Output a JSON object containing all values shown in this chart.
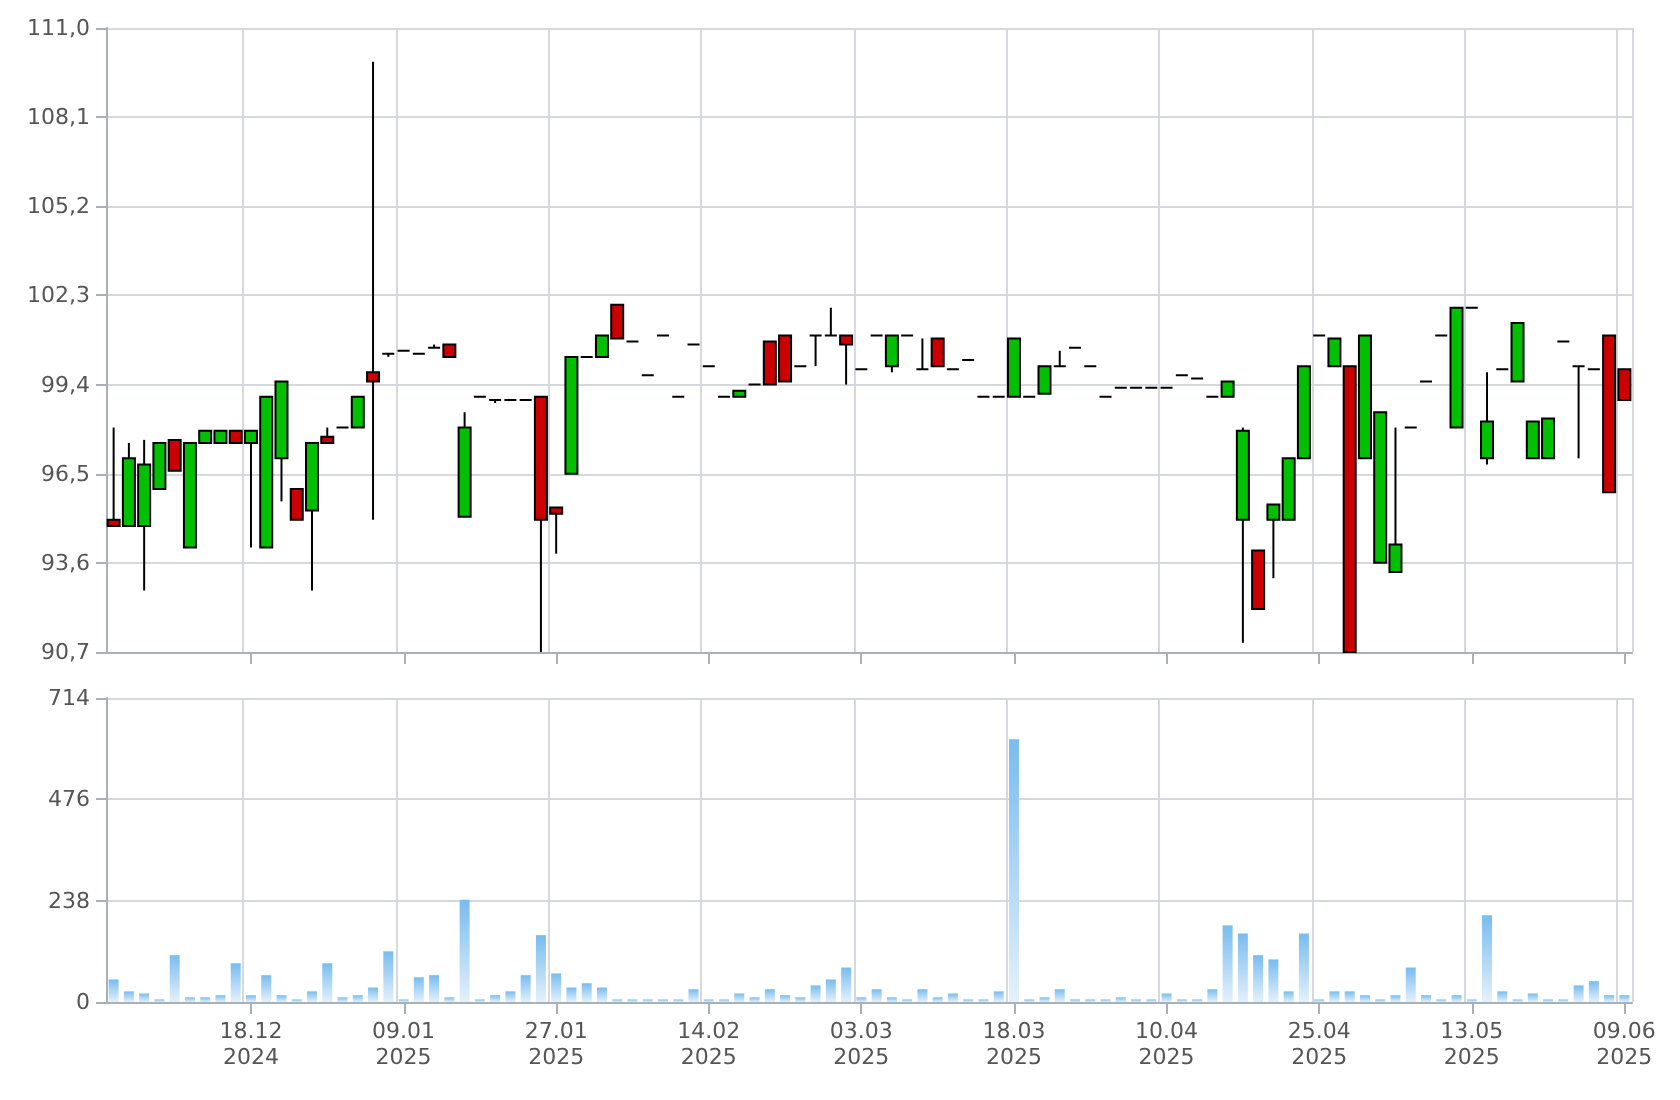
{
  "chart_data": [
    {
      "type": "candlestick",
      "grid": true,
      "tick_labels": "y",
      "categories": [
        null,
        null,
        null,
        null,
        null,
        null,
        null,
        null,
        null,
        null,
        null,
        null,
        null,
        null,
        null,
        null,
        null,
        null,
        null,
        null,
        null,
        null,
        null,
        null,
        null,
        null,
        null,
        null,
        null,
        null,
        null,
        null,
        null,
        null,
        null,
        null,
        null,
        null,
        null,
        null,
        null,
        null,
        null,
        null,
        null,
        null,
        null,
        null,
        null,
        null,
        null,
        null,
        null,
        null,
        null,
        null,
        null,
        null,
        null,
        null,
        null,
        null,
        null,
        null,
        null,
        null,
        null,
        null,
        null,
        null,
        null,
        null,
        null,
        null,
        null,
        null,
        null,
        null,
        null,
        null,
        null,
        null,
        null,
        null,
        null,
        null,
        null,
        null,
        null,
        null,
        null,
        null,
        null,
        null,
        null,
        null,
        null,
        null,
        null,
        null
      ],
      "ylim": [
        90.7,
        111.0
      ],
      "yticks": [
        {
          "value": 90.7,
          "label": "90,7"
        },
        {
          "value": 93.6,
          "label": "93,6"
        },
        {
          "value": 96.5,
          "label": "96,5"
        },
        {
          "value": 99.4,
          "label": "99,4"
        },
        {
          "value": 102.3,
          "label": "102,3"
        },
        {
          "value": 105.2,
          "label": "105,2"
        },
        {
          "value": 108.1,
          "label": "108,1"
        },
        {
          "value": 111.0,
          "label": "111,0"
        }
      ],
      "ohlc": [
        [
          95.0,
          98.0,
          94.8,
          94.8
        ],
        [
          94.8,
          97.5,
          94.8,
          97.0
        ],
        [
          94.8,
          97.6,
          92.7,
          96.8
        ],
        [
          96.0,
          97.5,
          96.0,
          97.5
        ],
        [
          97.6,
          97.6,
          96.6,
          96.6
        ],
        [
          94.1,
          97.5,
          94.1,
          97.5
        ],
        [
          97.5,
          97.9,
          97.5,
          97.9
        ],
        [
          97.5,
          97.9,
          97.5,
          97.9
        ],
        [
          97.9,
          97.9,
          97.5,
          97.5
        ],
        [
          97.5,
          97.9,
          94.1,
          97.9
        ],
        [
          94.1,
          99.0,
          94.1,
          99.0
        ],
        [
          97.0,
          99.5,
          95.6,
          99.5
        ],
        [
          96.0,
          96.0,
          95.0,
          95.0
        ],
        [
          95.3,
          97.5,
          92.7,
          97.5
        ],
        [
          97.7,
          98.0,
          97.5,
          97.5
        ],
        [
          98.0,
          98.0,
          98.0,
          98.0
        ],
        [
          98.0,
          99.0,
          98.0,
          99.0
        ],
        [
          99.8,
          109.9,
          95.0,
          99.5
        ],
        [
          100.4,
          100.4,
          100.3,
          100.4
        ],
        [
          100.5,
          100.5,
          100.5,
          100.5
        ],
        [
          100.4,
          100.4,
          100.4,
          100.4
        ],
        [
          100.6,
          100.7,
          100.6,
          100.6
        ],
        [
          100.7,
          100.7,
          100.3,
          100.3
        ],
        [
          95.1,
          98.5,
          95.1,
          98.0
        ],
        [
          99.0,
          99.0,
          99.0,
          99.0
        ],
        [
          98.9,
          98.9,
          98.8,
          98.9
        ],
        [
          98.9,
          98.9,
          98.9,
          98.9
        ],
        [
          98.9,
          98.9,
          98.9,
          98.9
        ],
        [
          99.0,
          99.0,
          90.7,
          95.0
        ],
        [
          95.4,
          95.4,
          93.9,
          95.2
        ],
        [
          96.5,
          100.3,
          96.5,
          100.3
        ],
        [
          100.3,
          100.3,
          100.3,
          100.3
        ],
        [
          100.3,
          101.0,
          100.3,
          101.0
        ],
        [
          102.0,
          102.0,
          100.9,
          100.9
        ],
        [
          100.8,
          100.8,
          100.8,
          100.8
        ],
        [
          99.7,
          99.7,
          99.7,
          99.7
        ],
        [
          101.0,
          101.0,
          101.0,
          101.0
        ],
        [
          99.0,
          99.0,
          99.0,
          99.0
        ],
        [
          100.7,
          100.7,
          100.7,
          100.7
        ],
        [
          100.0,
          100.0,
          100.0,
          100.0
        ],
        [
          99.0,
          99.0,
          99.0,
          99.0
        ],
        [
          99.0,
          99.2,
          99.0,
          99.2
        ],
        [
          99.4,
          99.4,
          99.4,
          99.4
        ],
        [
          100.8,
          100.8,
          99.4,
          99.4
        ],
        [
          101.0,
          101.0,
          99.5,
          99.5
        ],
        [
          100.0,
          100.0,
          100.0,
          100.0
        ],
        [
          101.0,
          101.0,
          100.0,
          101.0
        ],
        [
          101.0,
          101.9,
          101.0,
          101.0
        ],
        [
          101.0,
          101.0,
          99.4,
          100.7
        ],
        [
          99.9,
          99.9,
          99.9,
          99.9
        ],
        [
          101.0,
          101.0,
          101.0,
          101.0
        ],
        [
          100.0,
          101.0,
          99.8,
          101.0
        ],
        [
          101.0,
          101.0,
          101.0,
          101.0
        ],
        [
          99.9,
          100.9,
          99.9,
          99.9
        ],
        [
          100.9,
          100.9,
          100.0,
          100.0
        ],
        [
          99.9,
          99.9,
          99.9,
          99.9
        ],
        [
          100.2,
          100.2,
          100.2,
          100.2
        ],
        [
          99.0,
          99.0,
          99.0,
          99.0
        ],
        [
          99.0,
          99.0,
          99.0,
          99.0
        ],
        [
          99.0,
          100.9,
          99.0,
          100.9
        ],
        [
          99.0,
          99.0,
          99.0,
          99.0
        ],
        [
          99.1,
          100.0,
          99.1,
          100.0
        ],
        [
          100.0,
          100.5,
          100.0,
          100.0
        ],
        [
          100.6,
          100.6,
          100.6,
          100.6
        ],
        [
          100.0,
          100.0,
          100.0,
          100.0
        ],
        [
          99.0,
          99.0,
          99.0,
          99.0
        ],
        [
          99.3,
          99.3,
          99.3,
          99.3
        ],
        [
          99.3,
          99.3,
          99.3,
          99.3
        ],
        [
          99.3,
          99.3,
          99.3,
          99.3
        ],
        [
          99.3,
          99.3,
          99.3,
          99.3
        ],
        [
          99.7,
          99.7,
          99.7,
          99.7
        ],
        [
          99.6,
          99.6,
          99.6,
          99.6
        ],
        [
          99.0,
          99.0,
          99.0,
          99.0
        ],
        [
          99.0,
          99.5,
          99.0,
          99.5
        ],
        [
          95.0,
          98.0,
          91.0,
          97.9
        ],
        [
          94.0,
          94.0,
          92.1,
          92.1
        ],
        [
          95.0,
          95.5,
          93.1,
          95.5
        ],
        [
          95.0,
          97.0,
          95.0,
          97.0
        ],
        [
          97.0,
          100.0,
          97.0,
          100.0
        ],
        [
          101.0,
          101.0,
          101.0,
          101.0
        ],
        [
          100.0,
          100.9,
          100.0,
          100.9
        ],
        [
          100.0,
          100.0,
          90.7,
          90.7
        ],
        [
          97.0,
          101.0,
          97.0,
          101.0
        ],
        [
          93.6,
          98.5,
          93.6,
          98.5
        ],
        [
          93.3,
          98.0,
          93.3,
          94.2
        ],
        [
          98.0,
          98.0,
          98.0,
          98.0
        ],
        [
          99.5,
          99.5,
          99.5,
          99.5
        ],
        [
          101.0,
          101.0,
          101.0,
          101.0
        ],
        [
          98.0,
          101.9,
          98.0,
          101.9
        ],
        [
          101.9,
          101.9,
          101.9,
          101.9
        ],
        [
          97.0,
          99.8,
          96.8,
          98.2
        ],
        [
          99.9,
          99.9,
          99.9,
          99.9
        ],
        [
          99.5,
          101.4,
          99.5,
          101.4
        ],
        [
          97.0,
          98.2,
          97.0,
          98.2
        ],
        [
          97.0,
          98.3,
          97.0,
          98.3
        ],
        [
          100.8,
          100.8,
          100.8,
          100.8
        ],
        [
          100.0,
          100.0,
          97.0,
          100.0
        ],
        [
          99.9,
          99.9,
          99.9,
          99.9
        ],
        [
          101.0,
          101.0,
          95.9,
          95.9
        ],
        [
          99.9,
          99.9,
          98.9,
          98.9
        ]
      ]
    },
    {
      "type": "bar",
      "grid": true,
      "color": "#78bcf0",
      "categories": [
        null,
        null,
        null,
        null,
        null,
        null,
        null,
        null,
        null,
        "18.12\n2024",
        null,
        null,
        null,
        null,
        null,
        null,
        null,
        null,
        null,
        "09.01\n2025",
        null,
        null,
        null,
        null,
        null,
        null,
        null,
        null,
        null,
        "27.01\n2025",
        null,
        null,
        null,
        null,
        null,
        null,
        null,
        null,
        null,
        "14.02\n2025",
        null,
        null,
        null,
        null,
        null,
        null,
        null,
        null,
        null,
        "03.03\n2025",
        null,
        null,
        null,
        null,
        null,
        null,
        null,
        null,
        null,
        "18.03\n2025",
        null,
        null,
        null,
        null,
        null,
        null,
        null,
        null,
        null,
        "10.04\n2025",
        null,
        null,
        null,
        null,
        null,
        null,
        null,
        null,
        null,
        "25.04\n2025",
        null,
        null,
        null,
        null,
        null,
        null,
        null,
        null,
        null,
        "13.05\n2025",
        null,
        null,
        null,
        null,
        null,
        null,
        null,
        null,
        null,
        "09.06\n2025"
      ],
      "ylim": [
        0,
        714
      ],
      "yticks": [
        0,
        238,
        476,
        714
      ],
      "values": [
        53,
        25,
        20,
        6,
        110,
        11,
        11,
        16,
        91,
        16,
        63,
        16,
        6,
        25,
        91,
        11,
        16,
        34,
        119,
        6,
        58,
        63,
        11,
        240,
        6,
        16,
        25,
        63,
        157,
        67,
        34,
        44,
        34,
        6,
        6,
        6,
        6,
        6,
        30,
        6,
        6,
        20,
        11,
        30,
        16,
        11,
        39,
        53,
        81,
        11,
        30,
        11,
        6,
        30,
        11,
        20,
        6,
        6,
        25,
        617,
        6,
        11,
        30,
        6,
        6,
        6,
        11,
        6,
        6,
        20,
        6,
        6,
        30,
        180,
        161,
        110,
        100,
        25,
        161,
        6,
        25,
        25,
        16,
        6,
        16,
        81,
        16,
        6,
        16,
        6,
        204,
        25,
        6,
        20,
        6,
        6,
        39,
        49,
        16,
        16
      ]
    }
  ]
}
